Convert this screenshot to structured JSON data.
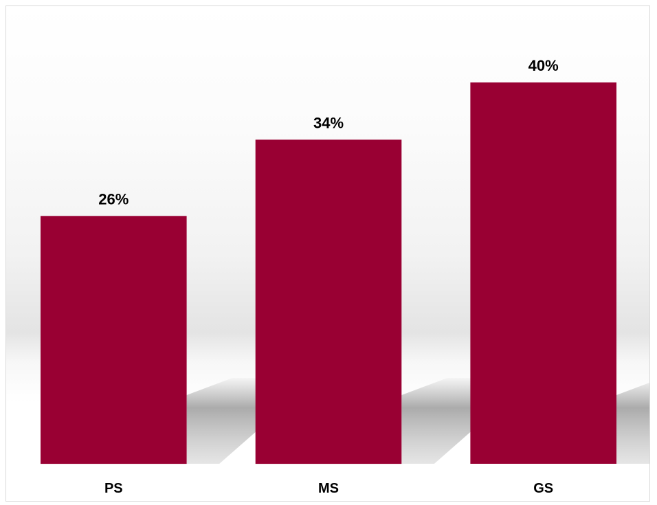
{
  "chart_data": {
    "type": "bar",
    "categories": [
      "PS",
      "MS",
      "GS"
    ],
    "values": [
      26,
      34,
      40
    ],
    "data_labels": [
      "26%",
      "34%",
      "40%"
    ],
    "unit": "%",
    "title": "",
    "xlabel": "",
    "ylabel": "",
    "ylim": [
      0,
      48
    ],
    "grid": false,
    "legend": "none",
    "colors": {
      "bar": "#990033",
      "shadow": "#9a9a9a"
    }
  }
}
